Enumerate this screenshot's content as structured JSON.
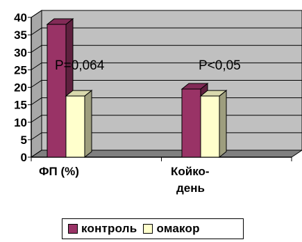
{
  "chart_data": {
    "type": "bar",
    "style": "3d-clustered",
    "categories": [
      "ФП (%)",
      "Койко-день"
    ],
    "category_label_lines": [
      [
        "ФП (%)"
      ],
      [
        "Койко-",
        "день"
      ]
    ],
    "series": [
      {
        "name": "контроль",
        "values": [
          38,
          19.5
        ],
        "color": "#993366"
      },
      {
        "name": "омакор",
        "values": [
          17.5,
          17.5
        ],
        "color": "#FFFFCC"
      }
    ],
    "annotations": [
      "P=0,064",
      "P<0,05"
    ],
    "ylim": [
      0,
      40
    ],
    "yticks": [
      0,
      5,
      10,
      15,
      20,
      25,
      30,
      35,
      40
    ],
    "grid": true,
    "legend_position": "bottom"
  },
  "colors": {
    "plot_wall": "#C0C0C0",
    "gridline": "#000000",
    "floor": "#808080"
  }
}
